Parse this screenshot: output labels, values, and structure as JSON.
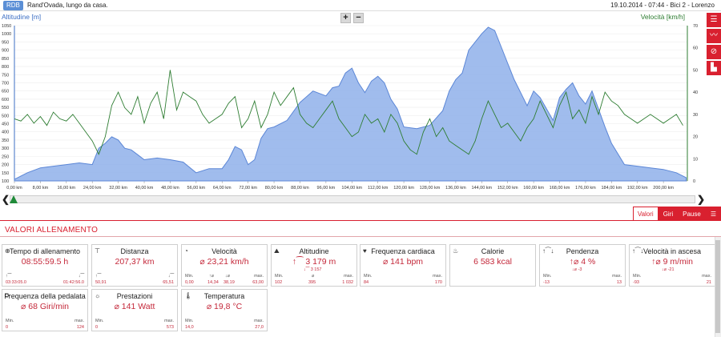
{
  "header": {
    "badge": "RDB",
    "title": "Rand'Ovada, lungo da casa.",
    "meta": "19.10.2014  -  07:44  -  Bici 2  -  Lorenzo"
  },
  "chart": {
    "left_label": "Altitudine [m]",
    "right_label": "Velocità [km/h]",
    "zoom_in": "+",
    "zoom_out": "−",
    "colors": {
      "altitude": "#5b86d6",
      "altitude_fill": "#8fb0ea",
      "speed": "#2e7d32",
      "axis_left": "#3d6fc4",
      "axis_right": "#2e7d32"
    }
  },
  "chart_data": {
    "type": "area",
    "title": "",
    "xlabel": "",
    "ylabel_left": "Altitudine [m]",
    "ylabel_right": "Velocità [km/h]",
    "x_ticks": [
      "0,00 km",
      "8,00 km",
      "16,00 km",
      "24,00 km",
      "32,00 km",
      "40,00 km",
      "48,00 km",
      "56,00 km",
      "64,00 km",
      "72,00 km",
      "80,00 km",
      "88,00 km",
      "96,00 km",
      "104,00 km",
      "112,00 km",
      "120,00 km",
      "128,00 km",
      "136,00 km",
      "144,00 km",
      "152,00 km",
      "160,00 km",
      "168,00 km",
      "176,00 km",
      "184,00 km",
      "192,00 km",
      "200,00 km"
    ],
    "y_left_ticks": [
      "1050",
      "1000",
      "950",
      "900",
      "850",
      "800",
      "750",
      "700",
      "650",
      "600",
      "550",
      "500",
      "450",
      "400",
      "350",
      "300",
      "250",
      "200",
      "150",
      "100"
    ],
    "y_right_ticks": [
      "70",
      "60",
      "50",
      "40",
      "30",
      "20",
      "10",
      "0"
    ],
    "ylim_left": [
      100,
      1050
    ],
    "ylim_right": [
      0,
      70
    ],
    "xlim": [
      0,
      207.37
    ],
    "series": [
      {
        "name": "Altitudine [m]",
        "axis": "left",
        "x": [
          0,
          4,
          8,
          12,
          16,
          20,
          24,
          26,
          28,
          30,
          32,
          34,
          36,
          38,
          40,
          44,
          48,
          52,
          56,
          60,
          64,
          66,
          68,
          70,
          72,
          74,
          76,
          78,
          80,
          84,
          88,
          92,
          96,
          98,
          100,
          102,
          104,
          106,
          108,
          110,
          112,
          114,
          116,
          118,
          120,
          124,
          128,
          132,
          134,
          136,
          138,
          140,
          142,
          144,
          146,
          148,
          150,
          152,
          154,
          156,
          158,
          160,
          162,
          164,
          166,
          168,
          170,
          172,
          174,
          176,
          178,
          180,
          182,
          184,
          188,
          192,
          196,
          200,
          204,
          207
        ],
        "y": [
          110,
          150,
          180,
          190,
          200,
          210,
          200,
          300,
          330,
          370,
          350,
          300,
          290,
          260,
          230,
          240,
          230,
          215,
          150,
          175,
          175,
          230,
          310,
          290,
          200,
          230,
          360,
          420,
          430,
          470,
          580,
          650,
          620,
          670,
          680,
          760,
          790,
          700,
          640,
          710,
          740,
          700,
          600,
          540,
          430,
          420,
          440,
          530,
          650,
          720,
          760,
          900,
          950,
          1000,
          1040,
          1020,
          920,
          820,
          720,
          640,
          560,
          650,
          610,
          540,
          470,
          610,
          660,
          700,
          620,
          570,
          650,
          540,
          430,
          330,
          200,
          190,
          180,
          170,
          150,
          120
        ]
      },
      {
        "name": "Velocità [km/h]",
        "axis": "right",
        "x": [
          0,
          2,
          4,
          6,
          8,
          10,
          12,
          14,
          16,
          18,
          20,
          22,
          24,
          26,
          28,
          30,
          32,
          34,
          36,
          38,
          40,
          42,
          44,
          46,
          48,
          50,
          52,
          54,
          56,
          58,
          60,
          62,
          64,
          66,
          68,
          70,
          72,
          74,
          76,
          78,
          80,
          82,
          84,
          86,
          88,
          90,
          92,
          94,
          96,
          98,
          100,
          102,
          104,
          106,
          108,
          110,
          112,
          114,
          116,
          118,
          120,
          122,
          124,
          126,
          128,
          130,
          132,
          134,
          136,
          138,
          140,
          142,
          144,
          146,
          148,
          150,
          152,
          154,
          156,
          158,
          160,
          162,
          164,
          166,
          168,
          170,
          172,
          174,
          176,
          178,
          180,
          182,
          184,
          186,
          188,
          190,
          192,
          194,
          196,
          198,
          200,
          202,
          204,
          206
        ],
        "y": [
          28,
          27,
          30,
          26,
          29,
          25,
          31,
          28,
          27,
          30,
          26,
          22,
          18,
          12,
          20,
          34,
          40,
          33,
          30,
          38,
          26,
          35,
          40,
          28,
          50,
          32,
          40,
          38,
          36,
          30,
          26,
          28,
          30,
          35,
          38,
          24,
          28,
          36,
          24,
          30,
          40,
          34,
          38,
          42,
          30,
          26,
          24,
          28,
          32,
          36,
          28,
          24,
          20,
          22,
          30,
          26,
          28,
          22,
          30,
          26,
          18,
          14,
          12,
          22,
          28,
          20,
          24,
          18,
          16,
          14,
          12,
          18,
          28,
          36,
          30,
          24,
          26,
          22,
          18,
          24,
          28,
          36,
          30,
          24,
          34,
          40,
          28,
          32,
          26,
          38,
          30,
          40,
          36,
          34,
          30,
          28,
          26,
          28,
          30,
          28,
          26,
          28,
          30,
          25
        ]
      }
    ]
  },
  "scroller": {
    "left_arrow": "❮",
    "right_arrow": "❯"
  },
  "tabs": [
    {
      "label": "Valori",
      "active": true
    },
    {
      "label": "Giri",
      "active": false
    },
    {
      "label": "Pause",
      "active": false
    }
  ],
  "section": {
    "title": "VALORI ALLENAMENTO"
  },
  "side_buttons": [
    "list-icon",
    "line-chart-icon",
    "no-entry-icon",
    "bar-chart-icon"
  ],
  "cards": [
    {
      "name": "tempo",
      "icon": "⊕",
      "title": "Tempo di allenamento",
      "main": "08:55:59.5 h",
      "a_lbl": "↑⁀",
      "a_val": "03:33:05.0",
      "b_lbl": "↓⁀",
      "b_val": "01:42:56.0"
    },
    {
      "name": "distanza",
      "icon": "⊤",
      "title": "Distanza",
      "main": "207,37 km",
      "a_lbl": "↑⁀",
      "a_val": "50,91",
      "b_lbl": "↓⁀",
      "b_val": "65,51"
    },
    {
      "name": "velocita",
      "icon": "◔",
      "title": "Velocità",
      "main": "⌀ 23,21 km/h",
      "min_lbl": "Min.",
      "min_val": "0,00",
      "mid1_lbl": "↑⌀",
      "mid1_val": "14,34",
      "mid2_lbl": "↓⌀",
      "mid2_val": "38,19",
      "max_lbl": "max.",
      "max_val": "63,00"
    },
    {
      "name": "altitudine",
      "icon": "⛰",
      "title": "Altitudine",
      "main": "↑⁀ 3 179 m",
      "sub": "↓⁀ 3 157",
      "min_lbl": "Min.",
      "min_val": "102",
      "mid_lbl": "⌀",
      "mid_val": "395",
      "max_lbl": "max.",
      "max_val": "1 032"
    },
    {
      "name": "frequenza-cardiaca",
      "icon": "♥",
      "title": "Frequenza cardiaca",
      "main": "⌀ 141 bpm",
      "min_lbl": "Min.",
      "min_val": "84",
      "max_lbl": "max.",
      "max_val": "170"
    },
    {
      "name": "calorie",
      "icon": "♨",
      "title": "Calorie",
      "main": "6 583 kcal"
    },
    {
      "name": "pendenza",
      "icon": "↑⁀↓",
      "title": "Pendenza",
      "main": "↑⌀ 4 %",
      "sub": "↓⌀ -3",
      "min_lbl": "Min.",
      "min_val": "-13",
      "max_lbl": "max.",
      "max_val": "13"
    },
    {
      "name": "velocita-ascesa",
      "icon": "↑⁀↓",
      "title": "Velocità in ascesa",
      "main": "↑⌀ 9 m/min",
      "sub": "↓⌀ -21",
      "min_lbl": "Min.",
      "min_val": "-93",
      "max_lbl": "max.",
      "max_val": "21"
    },
    {
      "name": "frequenza-pedalata",
      "icon": "⟳",
      "title": "Frequenza della pedalata",
      "main": "⌀ 68 Giri/min",
      "min_lbl": "Min.",
      "min_val": "0",
      "max_lbl": "max.",
      "max_val": "124"
    },
    {
      "name": "prestazioni",
      "icon": "☼",
      "title": "Prestazioni",
      "main": "⌀ 141 Watt",
      "min_lbl": "Min.",
      "min_val": "0",
      "max_lbl": "max.",
      "max_val": "573"
    },
    {
      "name": "temperatura",
      "icon": "🌡",
      "title": "Temperatura",
      "main": "⌀ 19,8 °C",
      "min_lbl": "Min.",
      "min_val": "14,0",
      "max_lbl": "max.",
      "max_val": "27,0"
    }
  ]
}
